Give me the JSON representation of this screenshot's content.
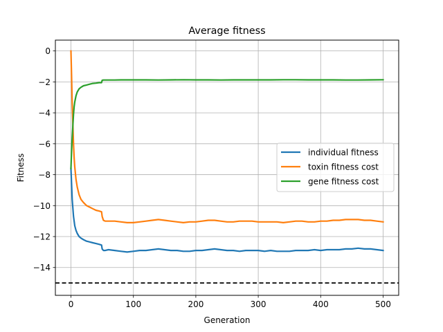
{
  "chart_data": {
    "type": "line",
    "title": "Average fitness",
    "xlabel": "Generation",
    "ylabel": "Fitness",
    "xlim": [
      -25,
      525
    ],
    "ylim": [
      -15.8,
      0.7
    ],
    "xticks": [
      0,
      100,
      200,
      300,
      400,
      500
    ],
    "yticks": [
      0,
      -2,
      -4,
      -6,
      -8,
      -10,
      -12,
      -14
    ],
    "grid": true,
    "legend_position": "center-right",
    "reference_line": {
      "y": -15,
      "style": "dashed",
      "color": "#000000"
    },
    "series": [
      {
        "name": "individual fitness",
        "color": "#1f77b4",
        "x": [
          0,
          2,
          4,
          6,
          8,
          10,
          13,
          16,
          20,
          25,
          30,
          35,
          40,
          45,
          49,
          50,
          52,
          55,
          60,
          70,
          80,
          90,
          100,
          110,
          120,
          130,
          140,
          150,
          160,
          170,
          180,
          190,
          200,
          210,
          220,
          230,
          240,
          250,
          260,
          270,
          280,
          290,
          300,
          310,
          320,
          330,
          340,
          350,
          360,
          370,
          380,
          390,
          400,
          410,
          420,
          430,
          440,
          450,
          460,
          470,
          480,
          490,
          500
        ],
        "y": [
          -7.6,
          -9.6,
          -10.7,
          -11.3,
          -11.6,
          -11.8,
          -12.0,
          -12.1,
          -12.2,
          -12.3,
          -12.35,
          -12.4,
          -12.45,
          -12.5,
          -12.55,
          -12.8,
          -12.9,
          -12.9,
          -12.85,
          -12.9,
          -12.95,
          -13.0,
          -12.95,
          -12.9,
          -12.9,
          -12.85,
          -12.8,
          -12.85,
          -12.9,
          -12.9,
          -12.95,
          -12.95,
          -12.9,
          -12.9,
          -12.85,
          -12.8,
          -12.85,
          -12.9,
          -12.9,
          -12.95,
          -12.9,
          -12.9,
          -12.9,
          -12.95,
          -12.9,
          -12.95,
          -12.95,
          -12.95,
          -12.9,
          -12.9,
          -12.9,
          -12.85,
          -12.9,
          -12.85,
          -12.85,
          -12.85,
          -12.8,
          -12.8,
          -12.75,
          -12.8,
          -12.8,
          -12.85,
          -12.9
        ]
      },
      {
        "name": "toxin fitness cost",
        "color": "#ff7f0e",
        "x": [
          0,
          1,
          2,
          3,
          4,
          5,
          6,
          8,
          10,
          13,
          16,
          20,
          25,
          30,
          35,
          40,
          45,
          49,
          50,
          52,
          55,
          60,
          70,
          80,
          90,
          100,
          110,
          120,
          130,
          140,
          150,
          160,
          170,
          180,
          190,
          200,
          210,
          220,
          230,
          240,
          250,
          260,
          270,
          280,
          290,
          300,
          310,
          320,
          330,
          340,
          350,
          360,
          370,
          380,
          390,
          400,
          410,
          420,
          430,
          440,
          450,
          460,
          470,
          480,
          490,
          500
        ],
        "y": [
          0.0,
          -1.6,
          -3.4,
          -4.8,
          -6.0,
          -6.9,
          -7.5,
          -8.3,
          -8.8,
          -9.3,
          -9.6,
          -9.8,
          -10.0,
          -10.1,
          -10.2,
          -10.3,
          -10.35,
          -10.4,
          -10.7,
          -10.95,
          -11.0,
          -11.0,
          -11.0,
          -11.05,
          -11.1,
          -11.1,
          -11.05,
          -11.0,
          -10.95,
          -10.9,
          -10.95,
          -11.0,
          -11.05,
          -11.1,
          -11.05,
          -11.05,
          -11.0,
          -10.95,
          -10.95,
          -11.0,
          -11.05,
          -11.05,
          -11.0,
          -11.0,
          -11.0,
          -11.05,
          -11.05,
          -11.05,
          -11.05,
          -11.1,
          -11.05,
          -11.0,
          -11.0,
          -11.05,
          -11.05,
          -11.0,
          -11.0,
          -10.95,
          -10.95,
          -10.9,
          -10.9,
          -10.9,
          -10.95,
          -10.95,
          -11.0,
          -11.05
        ]
      },
      {
        "name": "gene fitness cost",
        "color": "#2ca02c",
        "x": [
          0,
          1,
          2,
          3,
          4,
          5,
          6,
          8,
          10,
          13,
          16,
          20,
          25,
          30,
          35,
          40,
          45,
          49,
          50,
          52,
          55,
          60,
          70,
          80,
          90,
          100,
          120,
          140,
          160,
          180,
          200,
          220,
          240,
          260,
          280,
          300,
          320,
          340,
          360,
          380,
          400,
          420,
          440,
          460,
          480,
          500
        ],
        "y": [
          -7.6,
          -6.5,
          -5.6,
          -4.8,
          -4.1,
          -3.6,
          -3.3,
          -2.9,
          -2.65,
          -2.45,
          -2.35,
          -2.25,
          -2.2,
          -2.15,
          -2.1,
          -2.08,
          -2.05,
          -2.05,
          -1.9,
          -1.88,
          -1.88,
          -1.88,
          -1.88,
          -1.87,
          -1.87,
          -1.87,
          -1.87,
          -1.88,
          -1.87,
          -1.86,
          -1.87,
          -1.87,
          -1.88,
          -1.87,
          -1.87,
          -1.87,
          -1.87,
          -1.86,
          -1.86,
          -1.87,
          -1.87,
          -1.87,
          -1.88,
          -1.88,
          -1.87,
          -1.86
        ]
      }
    ]
  }
}
